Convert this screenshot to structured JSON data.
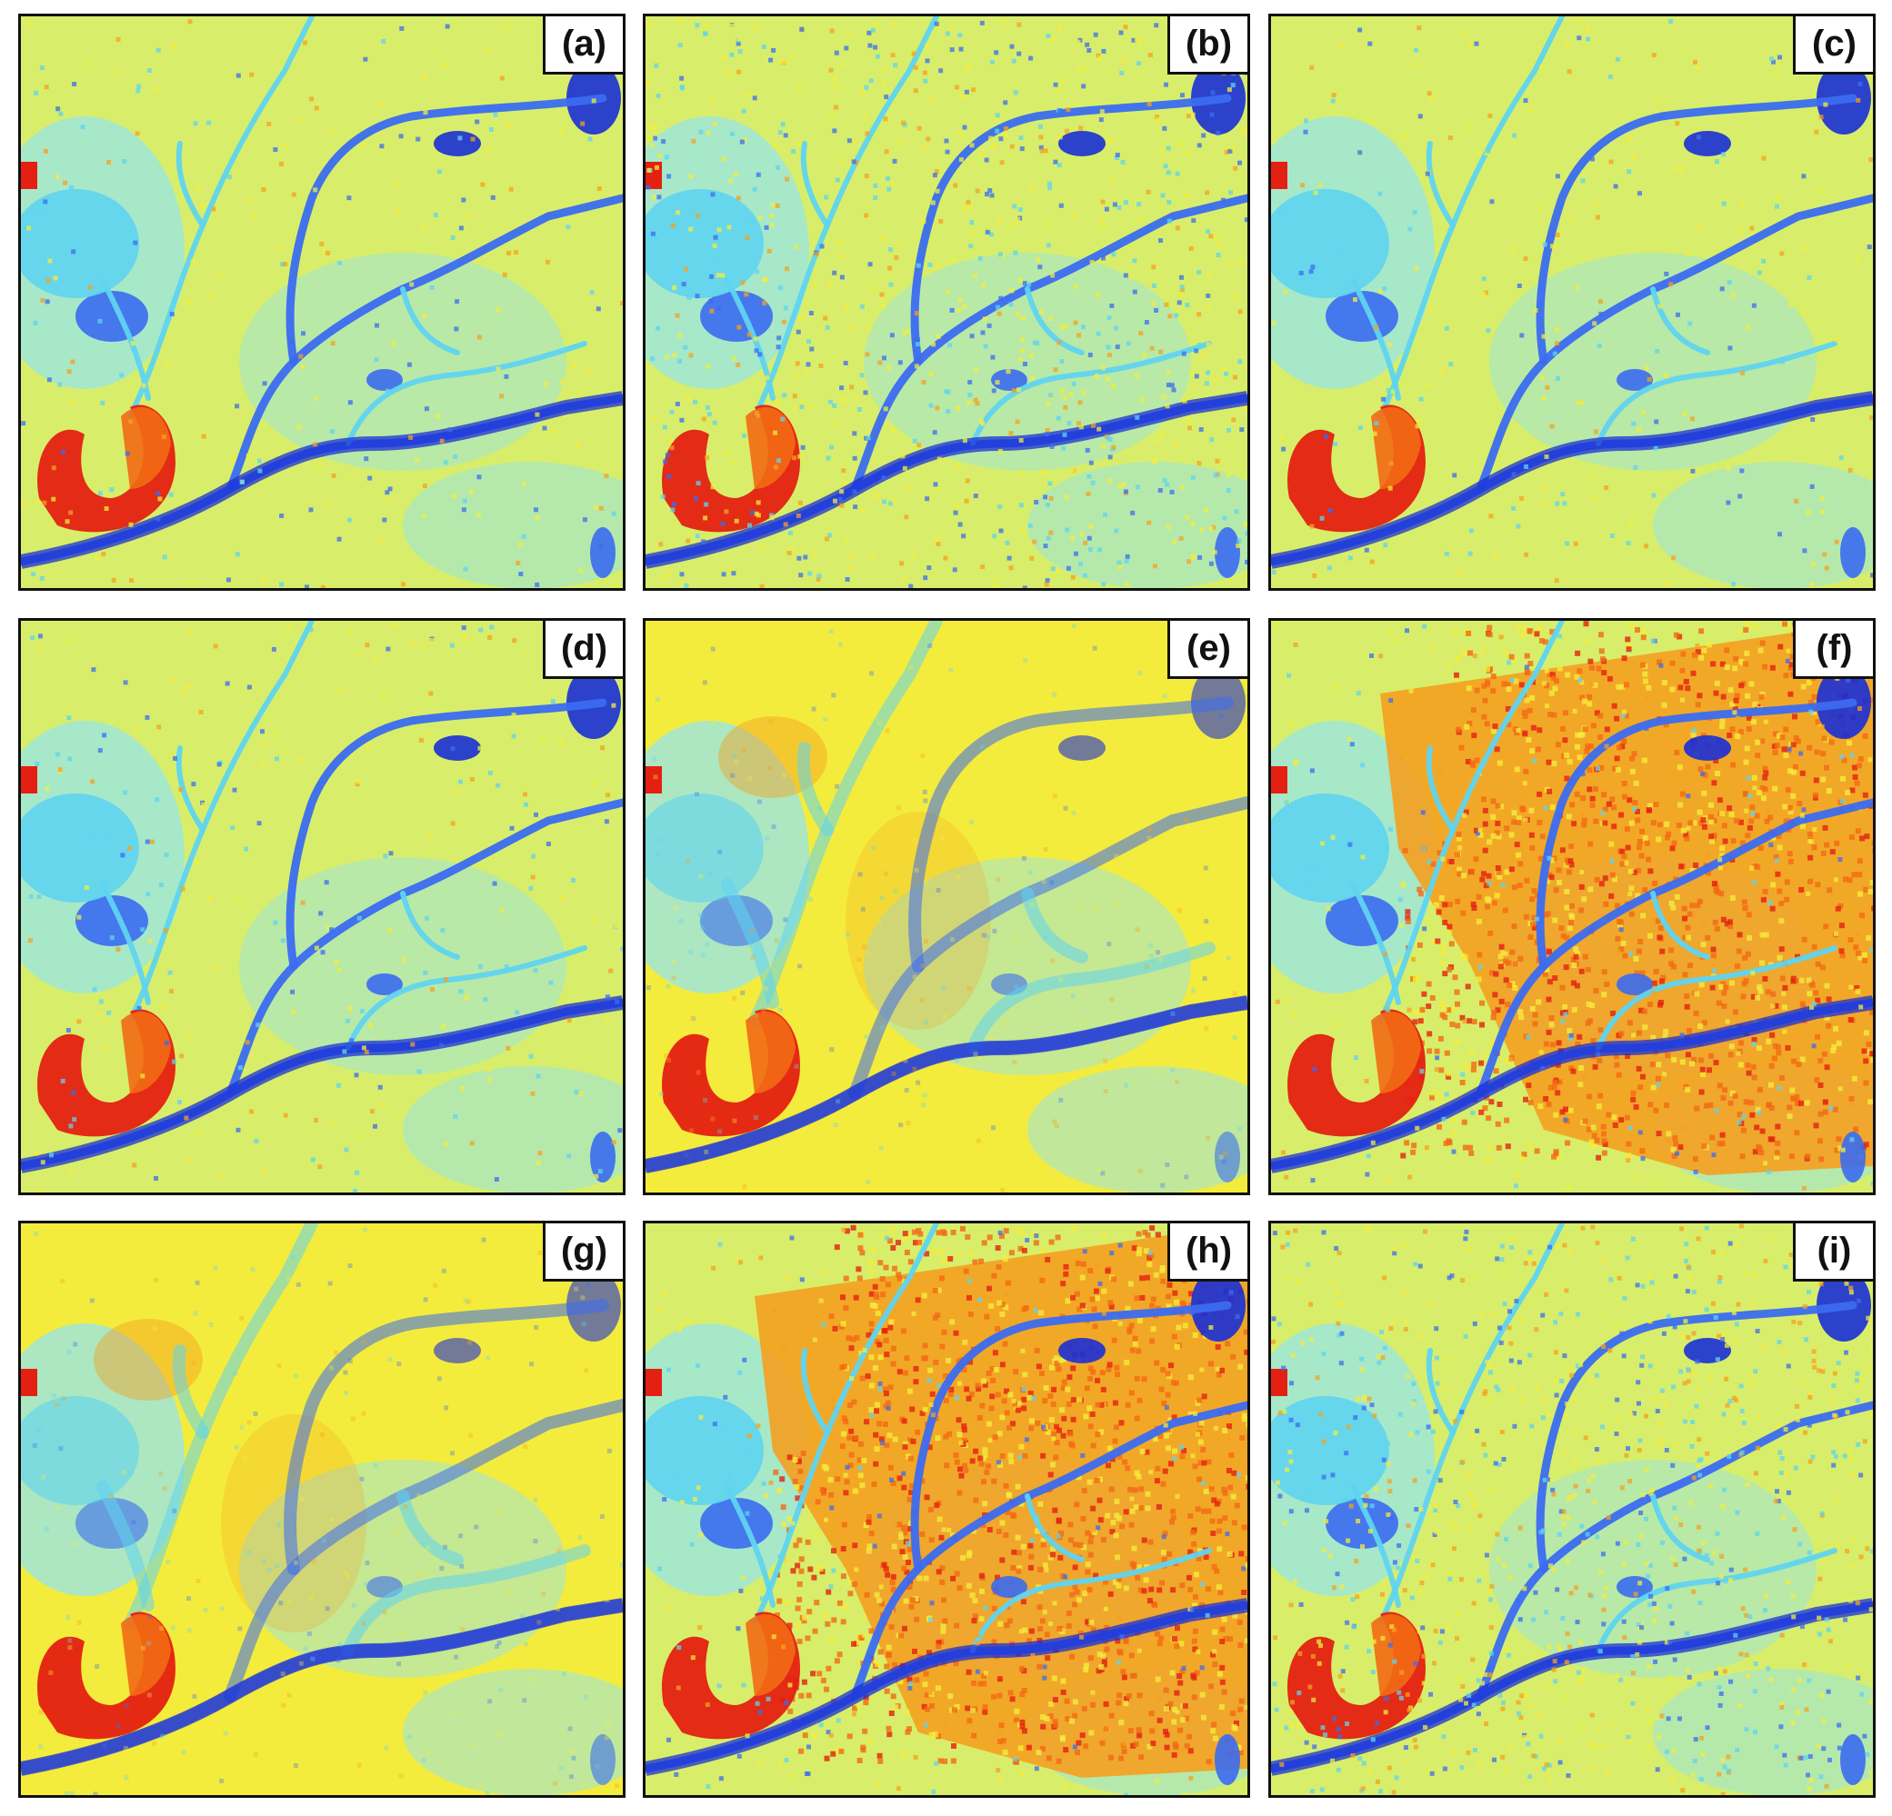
{
  "figure": {
    "palette": {
      "deep_blue": "#1a2fd6",
      "blue": "#3b6cf0",
      "cyan": "#5fd4f0",
      "light_cyan": "#9fe6d8",
      "yellow_green": "#d8ee6a",
      "yellow": "#f4ec3c",
      "orange": "#f5a020",
      "red_orange": "#f26a14",
      "red": "#e42012"
    },
    "panels": [
      {
        "label": "(a)",
        "style": "smooth"
      },
      {
        "label": "(b)",
        "style": "noisy"
      },
      {
        "label": "(c)",
        "style": "smooth"
      },
      {
        "label": "(d)",
        "style": "smooth"
      },
      {
        "label": "(e)",
        "style": "blurred"
      },
      {
        "label": "(f)",
        "style": "urban-orange"
      },
      {
        "label": "(g)",
        "style": "blurred"
      },
      {
        "label": "(h)",
        "style": "urban-orange"
      },
      {
        "label": "(i)",
        "style": "noisy"
      }
    ]
  }
}
